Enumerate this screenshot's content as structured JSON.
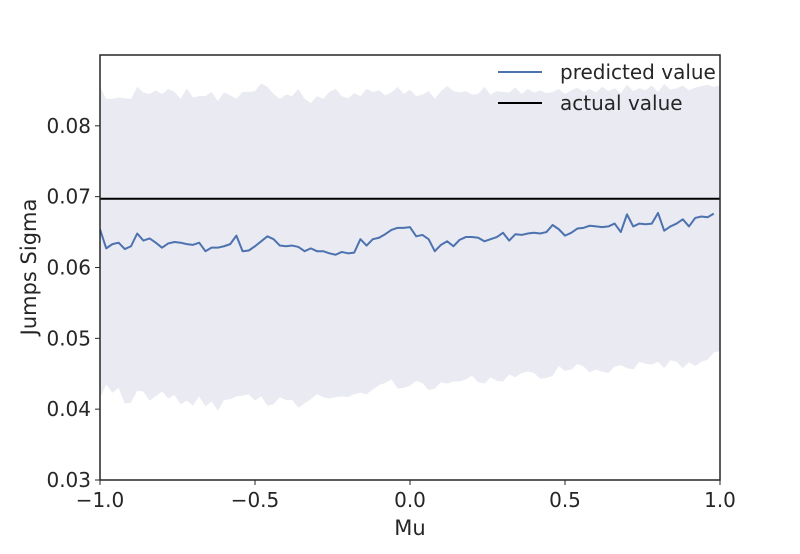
{
  "chart_data": {
    "type": "line",
    "xlabel": "Mu",
    "ylabel": "Jumps Sigma",
    "xlim": [
      -1.0,
      1.0
    ],
    "ylim": [
      0.03,
      0.09
    ],
    "xticks": [
      -1.0,
      -0.5,
      0.0,
      0.5,
      1.0
    ],
    "xtick_labels": [
      "−1.0",
      "−0.5",
      "0.0",
      "0.5",
      "1.0"
    ],
    "yticks": [
      0.03,
      0.04,
      0.05,
      0.06,
      0.07,
      0.08
    ],
    "ytick_labels": [
      "0.03",
      "0.04",
      "0.05",
      "0.06",
      "0.07",
      "0.08"
    ],
    "grid": false,
    "legend": {
      "position": "top-right",
      "entries": [
        {
          "label": "predicted value",
          "color": "#4c72b0"
        },
        {
          "label": "actual value",
          "color": "#000000"
        }
      ]
    },
    "actual_value": 0.0697,
    "colors": {
      "predicted": "#4c72b0",
      "actual": "#000000",
      "band": "#eaeaf2",
      "axes": "#262626"
    },
    "predicted": {
      "name": "predicted value",
      "x": [
        -1.0,
        -0.98,
        -0.96,
        -0.94,
        -0.92,
        -0.9,
        -0.88,
        -0.86,
        -0.84,
        -0.82,
        -0.8,
        -0.78,
        -0.76,
        -0.74,
        -0.72,
        -0.7,
        -0.68,
        -0.66,
        -0.64,
        -0.62,
        -0.6,
        -0.58,
        -0.56,
        -0.54,
        -0.52,
        -0.5,
        -0.48,
        -0.46,
        -0.44,
        -0.42,
        -0.4,
        -0.38,
        -0.36,
        -0.34,
        -0.32,
        -0.3,
        -0.28,
        -0.26,
        -0.24,
        -0.22,
        -0.2,
        -0.18,
        -0.16,
        -0.14,
        -0.12,
        -0.1,
        -0.08,
        -0.06,
        -0.04,
        -0.02,
        0.0,
        0.02,
        0.04,
        0.06,
        0.08,
        0.1,
        0.12,
        0.14,
        0.16,
        0.18,
        0.2,
        0.22,
        0.24,
        0.26,
        0.28,
        0.3,
        0.32,
        0.34,
        0.36,
        0.38,
        0.4,
        0.42,
        0.44,
        0.46,
        0.48,
        0.5,
        0.52,
        0.54,
        0.56,
        0.58,
        0.6,
        0.62,
        0.64,
        0.66,
        0.68,
        0.7,
        0.72,
        0.74,
        0.76,
        0.78,
        0.8,
        0.82,
        0.84,
        0.86,
        0.88,
        0.9,
        0.92,
        0.94,
        0.96,
        0.98
      ],
      "y": [
        0.0654,
        0.0627,
        0.0633,
        0.0635,
        0.0626,
        0.063,
        0.0648,
        0.0638,
        0.0641,
        0.0635,
        0.0628,
        0.0634,
        0.0636,
        0.0635,
        0.0633,
        0.0632,
        0.0635,
        0.0623,
        0.0628,
        0.0628,
        0.063,
        0.0633,
        0.0645,
        0.0623,
        0.0624,
        0.063,
        0.0637,
        0.0644,
        0.064,
        0.0631,
        0.063,
        0.0631,
        0.0629,
        0.0623,
        0.0627,
        0.0623,
        0.0623,
        0.062,
        0.0618,
        0.0622,
        0.062,
        0.0621,
        0.064,
        0.0631,
        0.064,
        0.0642,
        0.0647,
        0.0653,
        0.0656,
        0.0656,
        0.0657,
        0.0644,
        0.0646,
        0.064,
        0.0623,
        0.0632,
        0.0637,
        0.063,
        0.0639,
        0.0643,
        0.0643,
        0.0642,
        0.0637,
        0.064,
        0.0643,
        0.0649,
        0.0638,
        0.0647,
        0.0646,
        0.0648,
        0.0649,
        0.0648,
        0.065,
        0.066,
        0.0654,
        0.0645,
        0.0649,
        0.0655,
        0.0656,
        0.0659,
        0.0658,
        0.0657,
        0.0658,
        0.0662,
        0.065,
        0.0675,
        0.0658,
        0.0662,
        0.0661,
        0.0662,
        0.0677,
        0.0652,
        0.0658,
        0.0662,
        0.0668,
        0.0658,
        0.067,
        0.0672,
        0.0671,
        0.0676
      ]
    },
    "band": {
      "x": [
        -1.0,
        -0.98,
        -0.96,
        -0.94,
        -0.92,
        -0.9,
        -0.88,
        -0.86,
        -0.84,
        -0.82,
        -0.8,
        -0.78,
        -0.76,
        -0.74,
        -0.72,
        -0.7,
        -0.68,
        -0.66,
        -0.64,
        -0.62,
        -0.6,
        -0.58,
        -0.56,
        -0.54,
        -0.52,
        -0.5,
        -0.48,
        -0.46,
        -0.44,
        -0.42,
        -0.4,
        -0.38,
        -0.36,
        -0.34,
        -0.32,
        -0.3,
        -0.28,
        -0.26,
        -0.24,
        -0.22,
        -0.2,
        -0.18,
        -0.16,
        -0.14,
        -0.12,
        -0.1,
        -0.08,
        -0.06,
        -0.04,
        -0.02,
        0.0,
        0.02,
        0.04,
        0.06,
        0.08,
        0.1,
        0.12,
        0.14,
        0.16,
        0.18,
        0.2,
        0.22,
        0.24,
        0.26,
        0.28,
        0.3,
        0.32,
        0.34,
        0.36,
        0.38,
        0.4,
        0.42,
        0.44,
        0.46,
        0.48,
        0.5,
        0.52,
        0.54,
        0.56,
        0.58,
        0.6,
        0.62,
        0.64,
        0.66,
        0.68,
        0.7,
        0.72,
        0.74,
        0.76,
        0.78,
        0.8,
        0.82,
        0.84,
        0.86,
        0.88,
        0.9,
        0.92,
        0.94,
        0.96,
        0.98,
        1.0
      ],
      "upper": [
        0.0855,
        0.0838,
        0.0838,
        0.084,
        0.0839,
        0.0838,
        0.0855,
        0.0847,
        0.0845,
        0.085,
        0.0845,
        0.0852,
        0.0848,
        0.0838,
        0.0853,
        0.084,
        0.0842,
        0.0842,
        0.0848,
        0.0835,
        0.0847,
        0.0843,
        0.0838,
        0.0848,
        0.0848,
        0.0849,
        0.086,
        0.0855,
        0.0845,
        0.0838,
        0.0844,
        0.0842,
        0.0852,
        0.0838,
        0.0832,
        0.0842,
        0.0838,
        0.0848,
        0.0852,
        0.0842,
        0.0839,
        0.0846,
        0.0842,
        0.0852,
        0.0848,
        0.085,
        0.0843,
        0.0847,
        0.0855,
        0.0845,
        0.0851,
        0.0842,
        0.0844,
        0.0849,
        0.0838,
        0.0849,
        0.0856,
        0.0849,
        0.0847,
        0.0849,
        0.0844,
        0.0845,
        0.0855,
        0.0844,
        0.0849,
        0.0848,
        0.0847,
        0.0854,
        0.0845,
        0.0852,
        0.0847,
        0.085,
        0.0846,
        0.0848,
        0.0852,
        0.0845,
        0.085,
        0.0854,
        0.0848,
        0.0852,
        0.0847,
        0.0855,
        0.0849,
        0.0853,
        0.0846,
        0.0858,
        0.0849,
        0.0853,
        0.085,
        0.0857,
        0.0848,
        0.0859,
        0.0851,
        0.0853,
        0.0857,
        0.085,
        0.0854,
        0.0856,
        0.0858,
        0.0855,
        0.0857
      ],
      "lower": [
        0.0416,
        0.0435,
        0.0423,
        0.043,
        0.0408,
        0.0409,
        0.0426,
        0.0425,
        0.0412,
        0.0418,
        0.0425,
        0.0415,
        0.042,
        0.0407,
        0.0412,
        0.0405,
        0.0418,
        0.0404,
        0.0411,
        0.0398,
        0.0413,
        0.0414,
        0.0418,
        0.0419,
        0.0421,
        0.0412,
        0.0418,
        0.0405,
        0.0407,
        0.0417,
        0.0413,
        0.0413,
        0.0402,
        0.0408,
        0.0414,
        0.0421,
        0.0417,
        0.0415,
        0.0417,
        0.0418,
        0.0417,
        0.0421,
        0.0423,
        0.0421,
        0.0428,
        0.0434,
        0.0437,
        0.0442,
        0.0429,
        0.043,
        0.0433,
        0.044,
        0.0437,
        0.0427,
        0.0429,
        0.0438,
        0.0436,
        0.0439,
        0.0439,
        0.0442,
        0.0447,
        0.0438,
        0.0436,
        0.0445,
        0.044,
        0.0439,
        0.0449,
        0.0445,
        0.0451,
        0.0453,
        0.0451,
        0.0443,
        0.0444,
        0.0447,
        0.0461,
        0.0454,
        0.0456,
        0.0464,
        0.046,
        0.0452,
        0.0456,
        0.0453,
        0.0451,
        0.046,
        0.0462,
        0.0458,
        0.0456,
        0.0467,
        0.0464,
        0.0463,
        0.0467,
        0.0458,
        0.0469,
        0.0467,
        0.0458,
        0.0466,
        0.0461,
        0.0467,
        0.047,
        0.048,
        0.0482
      ]
    }
  }
}
